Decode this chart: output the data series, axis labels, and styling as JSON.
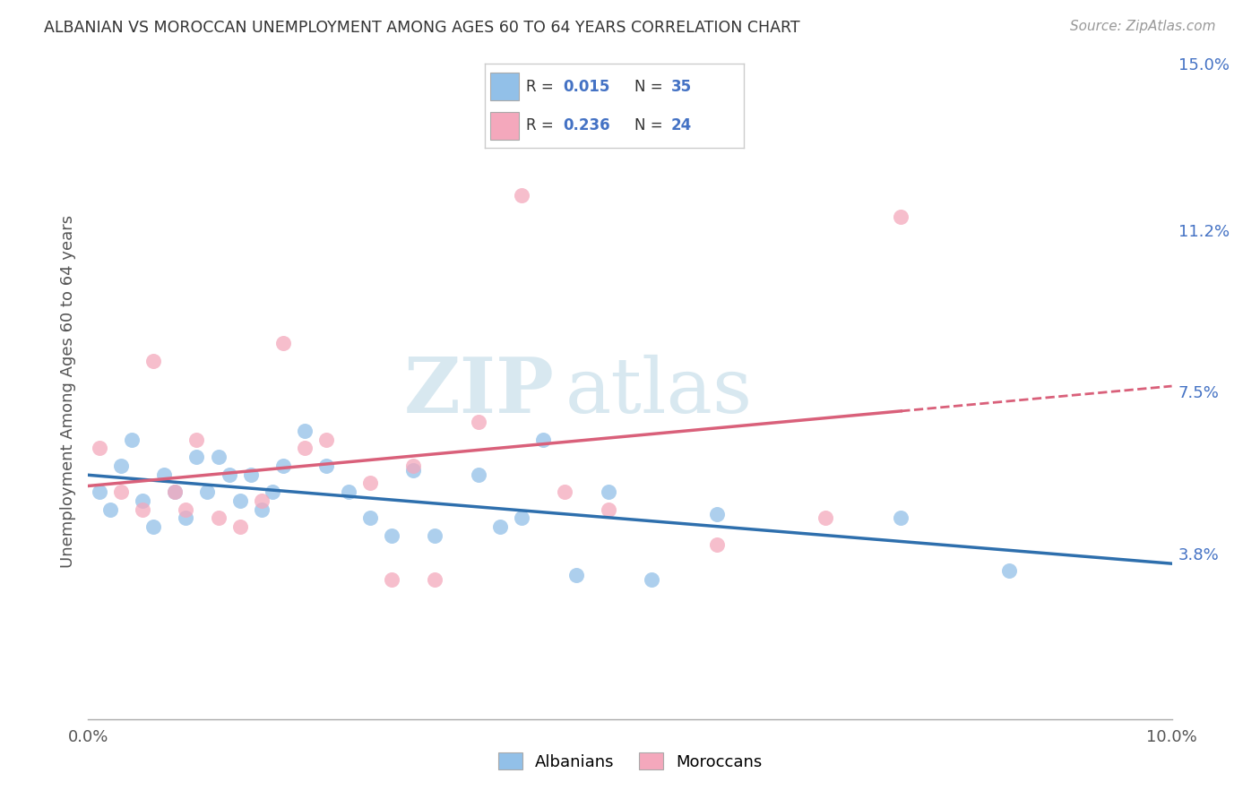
{
  "title": "ALBANIAN VS MOROCCAN UNEMPLOYMENT AMONG AGES 60 TO 64 YEARS CORRELATION CHART",
  "source": "Source: ZipAtlas.com",
  "ylabel": "Unemployment Among Ages 60 to 64 years",
  "xlim": [
    0.0,
    0.1
  ],
  "ylim": [
    0.0,
    0.15
  ],
  "y_tick_labels_right": [
    "15.0%",
    "11.2%",
    "7.5%",
    "3.8%"
  ],
  "y_tick_vals_right": [
    0.15,
    0.112,
    0.075,
    0.038
  ],
  "albanian_color": "#92C0E8",
  "moroccan_color": "#F4A8BC",
  "albanian_line_color": "#2E6FAD",
  "moroccan_line_color": "#D9607A",
  "albanian_R": 0.015,
  "albanian_N": 35,
  "moroccan_R": 0.236,
  "moroccan_N": 24,
  "albanian_x": [
    0.001,
    0.002,
    0.003,
    0.004,
    0.005,
    0.006,
    0.007,
    0.008,
    0.009,
    0.01,
    0.011,
    0.012,
    0.013,
    0.014,
    0.015,
    0.016,
    0.017,
    0.018,
    0.02,
    0.022,
    0.024,
    0.026,
    0.028,
    0.03,
    0.032,
    0.036,
    0.038,
    0.04,
    0.042,
    0.045,
    0.048,
    0.052,
    0.058,
    0.075,
    0.085
  ],
  "albanian_y": [
    0.052,
    0.048,
    0.058,
    0.064,
    0.05,
    0.044,
    0.056,
    0.052,
    0.046,
    0.06,
    0.052,
    0.06,
    0.056,
    0.05,
    0.056,
    0.048,
    0.052,
    0.058,
    0.066,
    0.058,
    0.052,
    0.046,
    0.042,
    0.057,
    0.042,
    0.056,
    0.044,
    0.046,
    0.064,
    0.033,
    0.052,
    0.032,
    0.047,
    0.046,
    0.034
  ],
  "moroccan_x": [
    0.001,
    0.003,
    0.005,
    0.006,
    0.008,
    0.009,
    0.01,
    0.012,
    0.014,
    0.016,
    0.018,
    0.02,
    0.022,
    0.026,
    0.028,
    0.03,
    0.032,
    0.036,
    0.04,
    0.044,
    0.048,
    0.058,
    0.068,
    0.075
  ],
  "moroccan_y": [
    0.062,
    0.052,
    0.048,
    0.082,
    0.052,
    0.048,
    0.064,
    0.046,
    0.044,
    0.05,
    0.086,
    0.062,
    0.064,
    0.054,
    0.032,
    0.058,
    0.032,
    0.068,
    0.12,
    0.052,
    0.048,
    0.04,
    0.046,
    0.115
  ],
  "background_color": "#FFFFFF",
  "grid_color": "#CCCCCC"
}
